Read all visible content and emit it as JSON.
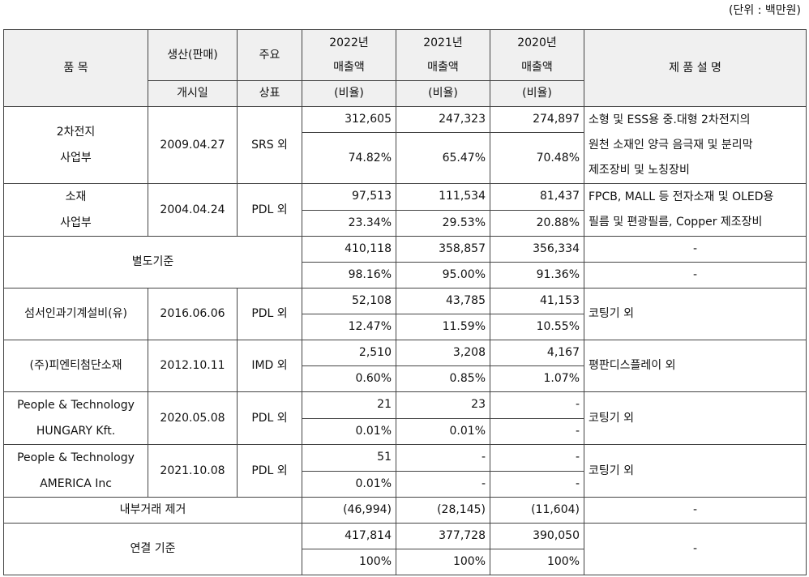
{
  "unit_note": "(단위 : 백만원)",
  "headers": {
    "item": "품 목",
    "start_top": "생산(판매)",
    "start_bottom": "개시일",
    "brand_top": "주요",
    "brand_bottom": "상표",
    "y2022_a": "2022년",
    "y2022_b": "매출액",
    "y2021_a": "2021년",
    "y2021_b": "매출액",
    "y2020_a": "2020년",
    "y2020_b": "매출액",
    "ratio": "(비율)",
    "desc": "제 품 설 명"
  },
  "rows": [
    {
      "name1": "2차전지",
      "name2": "사업부",
      "date": "2009.04.27",
      "brand": "SRS 외",
      "v2022": "312,605",
      "v2021": "247,323",
      "v2020": "274,897",
      "r2022": "74.82%",
      "r2021": "65.47%",
      "r2020": "70.48%",
      "desc1": "소형 및 ESS용 중.대형 2차전지의",
      "desc2": "원천 소재인 양극 음극재 및 분리막",
      "desc3": "제조장비 및 노칭장비"
    },
    {
      "name1": "소재",
      "name2": "사업부",
      "date": "2004.04.24",
      "brand": "PDL 외",
      "v2022": "97,513",
      "v2021": "111,534",
      "v2020": "81,437",
      "r2022": "23.34%",
      "r2021": "29.53%",
      "r2020": "20.88%",
      "desc1": "FPCB, MALL 등 전자소재 및 OLED용",
      "desc2": "필름 및 편광필름, Copper 제조장비"
    },
    {
      "name": "별도기준",
      "v2022": "410,118",
      "v2021": "358,857",
      "v2020": "356,334",
      "r2022": "98.16%",
      "r2021": "95.00%",
      "r2020": "91.36%",
      "desc1": "-",
      "desc2": "-"
    },
    {
      "name": "섬서인과기계설비(유)",
      "date": "2016.06.06",
      "brand": "PDL 외",
      "v2022": "52,108",
      "v2021": "43,785",
      "v2020": "41,153",
      "r2022": "12.47%",
      "r2021": "11.59%",
      "r2020": "10.55%",
      "desc": "코팅기 외"
    },
    {
      "name": "(주)피엔티첨단소재",
      "date": "2012.10.11",
      "brand": "IMD 외",
      "v2022": "2,510",
      "v2021": "3,208",
      "v2020": "4,167",
      "r2022": "0.60%",
      "r2021": "0.85%",
      "r2020": "1.07%",
      "desc": "평판디스플레이 외"
    },
    {
      "name1": "People & Technology",
      "name2": "HUNGARY Kft.",
      "date": "2020.05.08",
      "brand": "PDL 외",
      "v2022": "21",
      "v2021": "23",
      "v2020": "-",
      "r2022": "0.01%",
      "r2021": "0.01%",
      "r2020": "-",
      "desc": "코팅기 외"
    },
    {
      "name1": "People & Technology",
      "name2": "AMERICA Inc",
      "date": "2021.10.08",
      "brand": "PDL 외",
      "v2022": "51",
      "v2021": "-",
      "v2020": "-",
      "r2022": "0.01%",
      "r2021": "-",
      "r2020": "-",
      "desc": "코팅기 외"
    },
    {
      "name": "내부거래 제거",
      "v2022": "(46,994)",
      "v2021": "(28,145)",
      "v2020": "(11,604)",
      "desc": "-"
    },
    {
      "name": "연결 기준",
      "v2022": "417,814",
      "v2021": "377,728",
      "v2020": "390,050",
      "r2022": "100%",
      "r2021": "100%",
      "r2020": "100%",
      "desc": "-"
    }
  ]
}
